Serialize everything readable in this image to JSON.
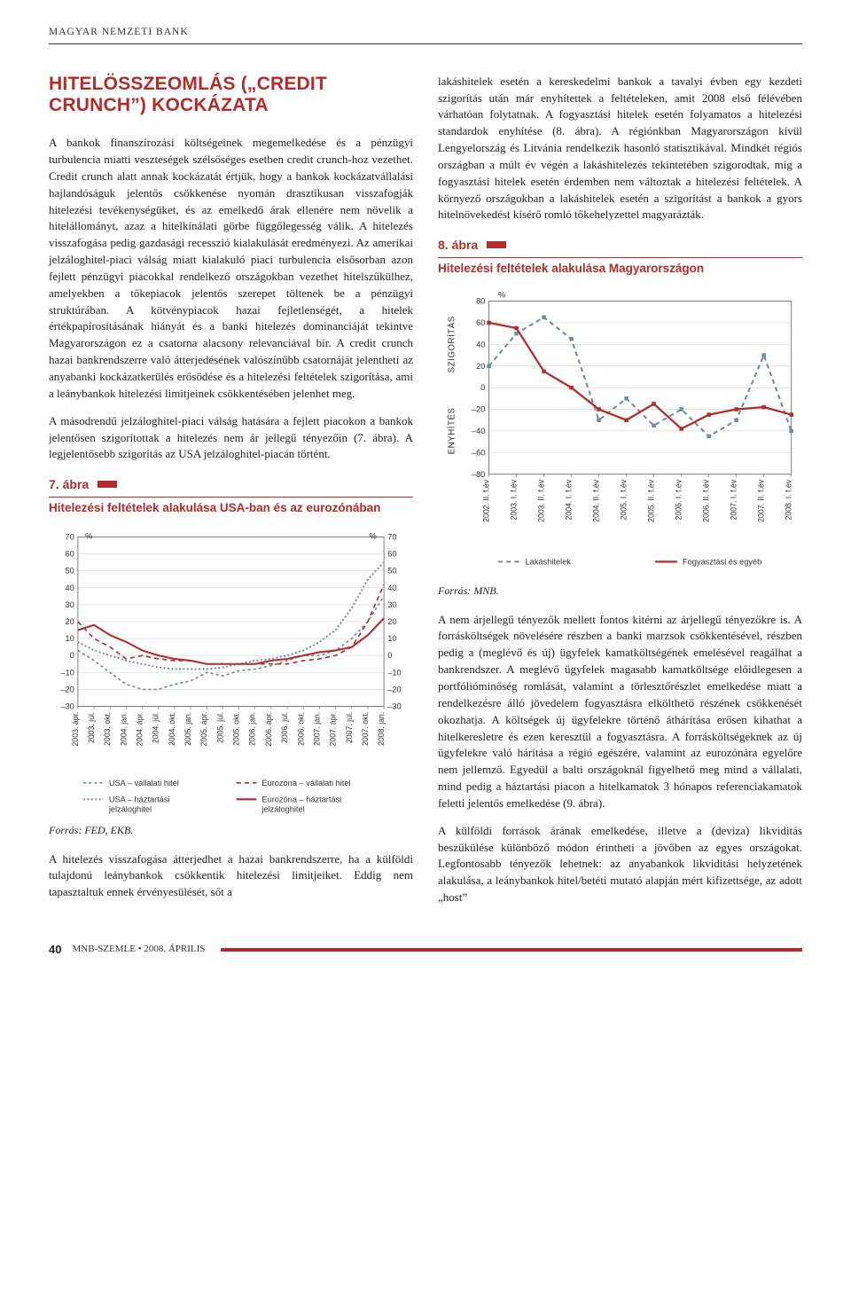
{
  "running_head": "MAGYAR NEMZETI BANK",
  "section_title": "HITELÖSSZEOMLÁS („CREDIT CRUNCH”) KOCKÁZATA",
  "left_paras": [
    "A bankok finanszírozási költségeinek megemelkedése és a pénzügyi turbulencia miatti veszteségek szélsőséges esetben credit crunch-hoz vezethet. Credit crunch alatt annak kockázatát értjük, hogy a bankok kockázatvállalási hajlandóságuk jelentős csökkenése nyomán drasztikusan visszafogják hitelezési tevékenységüket, és az emelkedő árak ellenére nem növelik a hitelállományt, azaz a hitelkínálati görbe függőlegesség válik. A hitelezés visszafogása pedig gazdasági recesszió kialakulását eredményezi. Az amerikai jelzáloghitel-piaci válság miatt kialakuló piaci turbulencia elsősorban azon fejlett pénzügyi piacokkal rendelkező országokban vezethet hitelszűkülhez, amelyekben a tőkepiacok jelentős szerepet töltenek be a pénzügyi struktúrában. A kötvénypiacok hazai fejletlenségét, a hitelek értékpapírosításának hiányát és a banki hitelezés dominanciáját tekintve Magyarországon ez a csatorna alacsony relevanciával bír. A credit crunch hazai bankrendszerre való átterjedésének valószínűbb csatornáját jelentheti az anyabanki kockázatkerülés erősödése és a hitelezési feltételek szigorítása, ami a leánybankok hitelezési limitjeinek csökkentésében jelenhet meg.",
    "A másodrendű jelzáloghitel-piaci válság hatására a fejlett piacokon a bankok jelentősen szigorítottak a hitelezés nem ár jellegű tényezőin (7. ábra). A legjelentősebb szigorítás az USA jelzáloghitel-piacán történt."
  ],
  "right_paras_top": [
    "lakáshitelek esetén a kereskedelmi bankok a tavalyi évben egy kezdeti szigorítás után már enyhítettek a feltételeken, amit 2008 első félévében várhatóan folytatnak. A fogyasztási hitelek esetén folyamatos a hitelezési standardok enyhítése (8. ábra). A régiónkban Magyarországon kívül Lengyelország és Litvánia rendelkezik hasonló statisztikával. Mindkét régiós országban a múlt év végén a lakáshitelezés tekintetében szigorodtak, míg a fogyasztási hitelek esetén érdemben nem változtak a hitelezési feltételek. A környező országokban a lakáshitelek esetén a szigorítást a bankok a gyors hitelnövekedést kísérő romló tőkehelyzettel magyarázták."
  ],
  "right_paras_bottom": [
    "A nem árjellegű tényezők mellett fontos kitérni az árjellegű tényezőkre is. A forrásköltségek növelésére részben a banki marzsok csökkentésével, részben pedig a (meglévő és új) ügyfelek kamatköltségének emelésével reagálhat a bankrendszer. A meglévő ügyfelek magasabb kamatköltsége előidlegesen a portfólióminőség romlását, valamint a törlesztőrészlet emelkedése miatt a rendelkezésre álló jövedelem fogyasztásra elkölthető részének csökkenését okozhatja. A költségek új ügyfelekre történő áthárítása erősen kihathat a hitelkeresletre és ezen keresztül a fogyasztásra. A forrásköltségeknek az új ügyfelekre való hárítása a régió egészére, valamint az eurozónára egyelőre nem jellemző. Egyedül a balti országoknál figyelhető meg mind a vállalati, mind pedig a háztartási piacon a hitelkamatok 3 hónapos referenciakamatok feletti jelentős emelkedése (9. ábra).",
    "A külföldi források árának emelkedése, illetve a (deviza) likviditás beszűkülése különböző módon érintheti a jövőben az egyes országokat. Legfontosabb tényezők lehetnek: az anyabankok likviditási helyzetének alakulása, a leánybankok hitel/betéti mutató alapján mért kifizettsége, az adott „host”"
  ],
  "bottom_left_paras": [
    "A hitelezés visszafogása átterjedhet a hazai bankrendszerre, ha a külföldi tulajdonú leánybankok csökkentik hitelezési limitjeiket. Eddig nem tapasztaltuk ennek érvényesülését, sőt a"
  ],
  "fig7": {
    "label": "7. ábra",
    "title": "Hitelezési feltételek alakulása USA-ban és az eurozónában",
    "source": "Forrás: FED, EKB.",
    "type": "line",
    "y_label_left": "%",
    "y_label_right": "%",
    "y_min": -30,
    "y_max": 70,
    "y_step": 10,
    "x_labels": [
      "2003. ápr.",
      "2003. júl.",
      "2003. okt.",
      "2004. jan.",
      "2004. ápr.",
      "2004. júl.",
      "2004. okt.",
      "2005. jan.",
      "2005. ápr.",
      "2005. júl.",
      "2005. okt.",
      "2006. jan.",
      "2006. ápr.",
      "2006. júl.",
      "2006. okt.",
      "2007. jan.",
      "2007. ápr.",
      "2007. júl.",
      "2007. okt.",
      "2008. jan."
    ],
    "series": [
      {
        "name": "USA – vállalati hitel",
        "color": "#6d8aa6",
        "dash": "3,3",
        "width": 1.6,
        "values": [
          3,
          -3,
          -10,
          -17,
          -20,
          -20,
          -17,
          -15,
          -10,
          -12,
          -9,
          -8,
          -6,
          -3,
          0,
          0,
          3,
          10,
          20,
          35
        ]
      },
      {
        "name": "USA – háztartási jelzáloghitel",
        "color": "#6d8aa6",
        "dash": "1.8,2.5",
        "width": 2.0,
        "values": [
          8,
          3,
          0,
          -3,
          -5,
          -7,
          -8,
          -8,
          -8,
          -7,
          -5,
          -3,
          -2,
          0,
          3,
          8,
          15,
          28,
          45,
          55
        ]
      },
      {
        "name": "Eurozóna – vállalati hitel",
        "color": "#b22d2a",
        "dash": "5,4",
        "width": 1.6,
        "values": [
          20,
          10,
          5,
          -2,
          0,
          -2,
          -3,
          -3,
          -5,
          -5,
          -5,
          -5,
          -5,
          -5,
          -3,
          -2,
          0,
          5,
          20,
          42
        ]
      },
      {
        "name": "Eurozóna – háztartási jelzáloghitel",
        "color": "#b22d2a",
        "dash": null,
        "width": 2.0,
        "values": [
          15,
          18,
          12,
          8,
          3,
          0,
          -2,
          -3,
          -5,
          -5,
          -5,
          -5,
          -3,
          -2,
          0,
          2,
          3,
          5,
          12,
          22
        ]
      }
    ],
    "grid_color": "#d9d9d9",
    "axis_color": "#666",
    "text_color": "#333",
    "font_size": 9
  },
  "fig8": {
    "label": "8. ábra",
    "title": "Hitelezési feltételek alakulása Magyarországon",
    "source": "Forrás: MNB.",
    "type": "line",
    "y_label": "%",
    "y_axis_label_top": "SZIGORÍTÁS",
    "y_axis_label_bottom": "ENYHÍTÉS",
    "y_min": -80,
    "y_max": 80,
    "y_step": 20,
    "x_labels": [
      "2002. II. f.év",
      "2003. I. f.év",
      "2003. II. f.év",
      "2004. I. f.év",
      "2004. II. f.év",
      "2005. I. f.év",
      "2005. II. f.év",
      "2006. I. f.év",
      "2006. II. f.év",
      "2007. I. f.év",
      "2007. II. f.év",
      "2008. I. f.év"
    ],
    "series": [
      {
        "name": "Lakáshitelek",
        "color": "#6d8aa6",
        "dash": "5,4",
        "width": 2.0,
        "values": [
          20,
          50,
          65,
          45,
          -30,
          -10,
          -35,
          -20,
          -45,
          -30,
          30,
          -40
        ]
      },
      {
        "name": "Fogyasztási és egyéb",
        "color": "#b22d2a",
        "dash": null,
        "width": 2.2,
        "values": [
          60,
          55,
          15,
          0,
          -20,
          -30,
          -15,
          -38,
          -25,
          -20,
          -18,
          -25
        ]
      }
    ],
    "grid_color": "#d9d9d9",
    "axis_color": "#666",
    "text_color": "#333",
    "font_size": 9
  },
  "footer": {
    "page": "40",
    "journal": "MNB-SZEMLE • 2008. ÁPRILIS"
  }
}
